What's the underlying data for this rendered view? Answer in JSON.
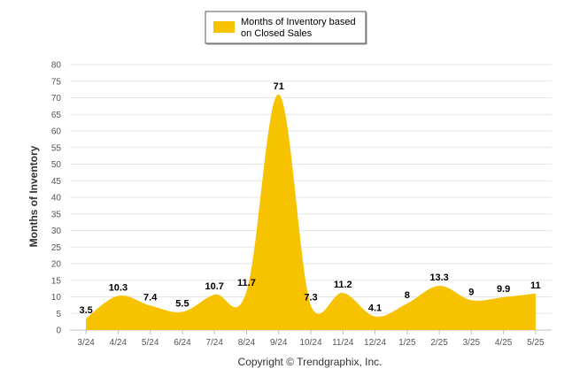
{
  "chart_data": {
    "type": "area",
    "categories": [
      "3/24",
      "4/24",
      "5/24",
      "6/24",
      "7/24",
      "8/24",
      "9/24",
      "10/24",
      "11/24",
      "12/24",
      "1/25",
      "2/25",
      "3/25",
      "4/25",
      "5/25"
    ],
    "series": [
      {
        "name": "Months of Inventory based on Closed Sales",
        "values": [
          3.5,
          10.3,
          7.4,
          5.5,
          10.7,
          11.7,
          71,
          7.3,
          11.2,
          4.1,
          8,
          13.3,
          9,
          9.9,
          11
        ],
        "labels": [
          "3.5",
          "10.3",
          "7.4",
          "5.5",
          "10.7",
          "11.7",
          "71",
          "7.3",
          "11.2",
          "4.1",
          "8",
          "13.3",
          "9",
          "9.9",
          "11"
        ],
        "color": "#F7C300"
      }
    ],
    "ylabel": "Months of Inventory",
    "xlabel": "",
    "ylim": [
      0,
      80
    ],
    "yticks": [
      "0",
      "5",
      "10",
      "15",
      "20",
      "25",
      "30",
      "35",
      "40",
      "45",
      "50",
      "55",
      "60",
      "65",
      "70",
      "75",
      "80"
    ],
    "grid": true,
    "legend_position": "top-center",
    "legend_label_lines": [
      "Months of Inventory based",
      "on Closed Sales"
    ]
  },
  "credit": "Copyright © Trendgraphix, Inc."
}
